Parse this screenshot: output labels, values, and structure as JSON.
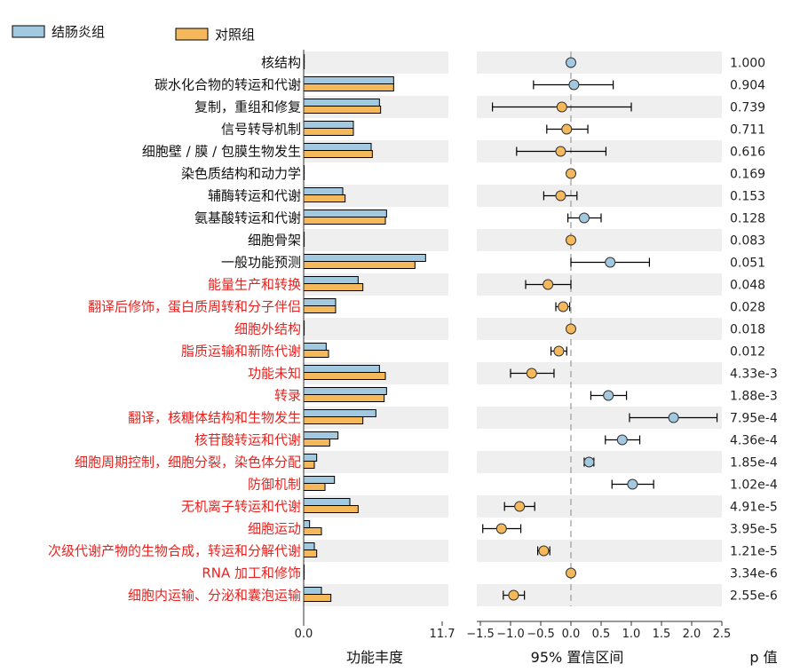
{
  "colors": {
    "colitis": "#a3c9e0",
    "control": "#f5b95b",
    "highlight": "#e8231f",
    "normal_text": "#111111",
    "row_band": "#efefef"
  },
  "legend": {
    "colitis_label": "结肠炎组",
    "control_label": "对照组"
  },
  "axes": {
    "left_title": "功能丰度",
    "left_ticks": [
      "0.0",
      "11.7"
    ],
    "mid_title": "95% 置信区间",
    "mid_ticks": [
      "−1.5",
      "−1.0",
      "−0.5",
      "0.0",
      "0.5",
      "1.0",
      "1.5",
      "2.0",
      "2.5"
    ],
    "right_title": "p 值"
  },
  "chart_data": [
    {
      "type": "bar",
      "title": "",
      "xlabel": "功能丰度",
      "xlim": [
        0,
        11.7
      ],
      "orientation": "horizontal",
      "categories": [
        "核结构",
        "碳水化合物的转运和代谢",
        "复制，重组和修复",
        "信号转导机制",
        "细胞壁 / 膜 / 包膜生物发生",
        "染色质结构和动力学",
        "辅酶转运和代谢",
        "氨基酸转运和代谢",
        "细胞骨架",
        "一般功能预测",
        "能量生产和转换",
        "翻译后修饰，蛋白质周转和分子伴侣",
        "细胞外结构",
        "脂质运输和新陈代谢",
        "功能未知",
        "转录",
        "翻译，核糖体结构和生物发生",
        "核苷酸转运和代谢",
        "细胞周期控制，细胞分裂，染色体分配",
        "防御机制",
        "无机离子转运和代谢",
        "细胞运动",
        "次级代谢产物的生物合成，转运和分解代谢",
        "RNA 加工和修饰",
        "细胞内运输、分泌和囊泡运输"
      ],
      "highlighted": [
        false,
        false,
        false,
        false,
        false,
        false,
        false,
        false,
        false,
        false,
        true,
        true,
        true,
        true,
        true,
        true,
        true,
        true,
        true,
        true,
        true,
        true,
        true,
        true,
        true
      ],
      "series": [
        {
          "name": "结肠炎组",
          "values": [
            0.05,
            7.6,
            6.4,
            4.2,
            5.7,
            0.02,
            3.3,
            7.0,
            0.03,
            10.3,
            4.6,
            2.7,
            0.03,
            1.9,
            6.4,
            7.0,
            6.1,
            2.9,
            1.1,
            2.6,
            3.9,
            0.5,
            0.9,
            0.03,
            1.5
          ]
        },
        {
          "name": "对照组",
          "values": [
            0.05,
            7.6,
            6.5,
            4.2,
            5.8,
            0.02,
            3.5,
            6.9,
            0.03,
            9.4,
            5.0,
            2.7,
            0.03,
            2.1,
            6.9,
            6.8,
            5.0,
            2.2,
            0.9,
            1.8,
            4.6,
            1.5,
            1.1,
            0.03,
            2.3
          ]
        }
      ]
    },
    {
      "type": "scatter",
      "title": "",
      "xlabel": "95% 置信区间",
      "xlim": [
        -1.5,
        2.5
      ],
      "reference_line": 0,
      "points": [
        {
          "diff": 0.0,
          "low": 0.0,
          "high": 0.0,
          "group": "结肠炎组"
        },
        {
          "diff": 0.05,
          "low": -0.62,
          "high": 0.7,
          "group": "结肠炎组"
        },
        {
          "diff": -0.15,
          "low": -1.3,
          "high": 1.0,
          "group": "对照组"
        },
        {
          "diff": -0.07,
          "low": -0.4,
          "high": 0.28,
          "group": "对照组"
        },
        {
          "diff": -0.17,
          "low": -0.9,
          "high": 0.58,
          "group": "对照组"
        },
        {
          "diff": 0.0,
          "low": 0.0,
          "high": 0.0,
          "group": "对照组"
        },
        {
          "diff": -0.17,
          "low": -0.45,
          "high": 0.1,
          "group": "对照组"
        },
        {
          "diff": 0.22,
          "low": -0.05,
          "high": 0.5,
          "group": "结肠炎组"
        },
        {
          "diff": 0.0,
          "low": 0.0,
          "high": 0.0,
          "group": "对照组"
        },
        {
          "diff": 0.65,
          "low": 0.0,
          "high": 1.3,
          "group": "结肠炎组"
        },
        {
          "diff": -0.38,
          "low": -0.75,
          "high": 0.0,
          "group": "对照组"
        },
        {
          "diff": -0.13,
          "low": -0.25,
          "high": -0.02,
          "group": "对照组"
        },
        {
          "diff": 0.0,
          "low": 0.0,
          "high": 0.0,
          "group": "对照组"
        },
        {
          "diff": -0.2,
          "low": -0.33,
          "high": -0.07,
          "group": "对照组"
        },
        {
          "diff": -0.65,
          "low": -1.0,
          "high": -0.28,
          "group": "对照组"
        },
        {
          "diff": 0.62,
          "low": 0.33,
          "high": 0.92,
          "group": "结肠炎组"
        },
        {
          "diff": 1.7,
          "low": 0.97,
          "high": 2.42,
          "group": "结肠炎组"
        },
        {
          "diff": 0.85,
          "low": 0.57,
          "high": 1.14,
          "group": "结肠炎组"
        },
        {
          "diff": 0.3,
          "low": 0.22,
          "high": 0.38,
          "group": "结肠炎组"
        },
        {
          "diff": 1.02,
          "low": 0.68,
          "high": 1.37,
          "group": "结肠炎组"
        },
        {
          "diff": -0.85,
          "low": -1.1,
          "high": -0.6,
          "group": "对照组"
        },
        {
          "diff": -1.15,
          "low": -1.46,
          "high": -0.83,
          "group": "对照组"
        },
        {
          "diff": -0.45,
          "low": -0.55,
          "high": -0.35,
          "group": "对照组"
        },
        {
          "diff": 0.0,
          "low": 0.0,
          "high": 0.0,
          "group": "对照组"
        },
        {
          "diff": -0.95,
          "low": -1.12,
          "high": -0.77,
          "group": "对照组"
        }
      ]
    },
    {
      "type": "table",
      "title": "",
      "column": "p 值",
      "values": [
        "1.000",
        "0.904",
        "0.739",
        "0.711",
        "0.616",
        "0.169",
        "0.153",
        "0.128",
        "0.083",
        "0.051",
        "0.048",
        "0.028",
        "0.018",
        "0.012",
        "4.33e-3",
        "1.88e-3",
        "7.95e-4",
        "4.36e-4",
        "1.85e-4",
        "1.02e-4",
        "4.91e-5",
        "3.95e-5",
        "1.21e-5",
        "3.34e-6",
        "2.55e-6"
      ]
    }
  ]
}
